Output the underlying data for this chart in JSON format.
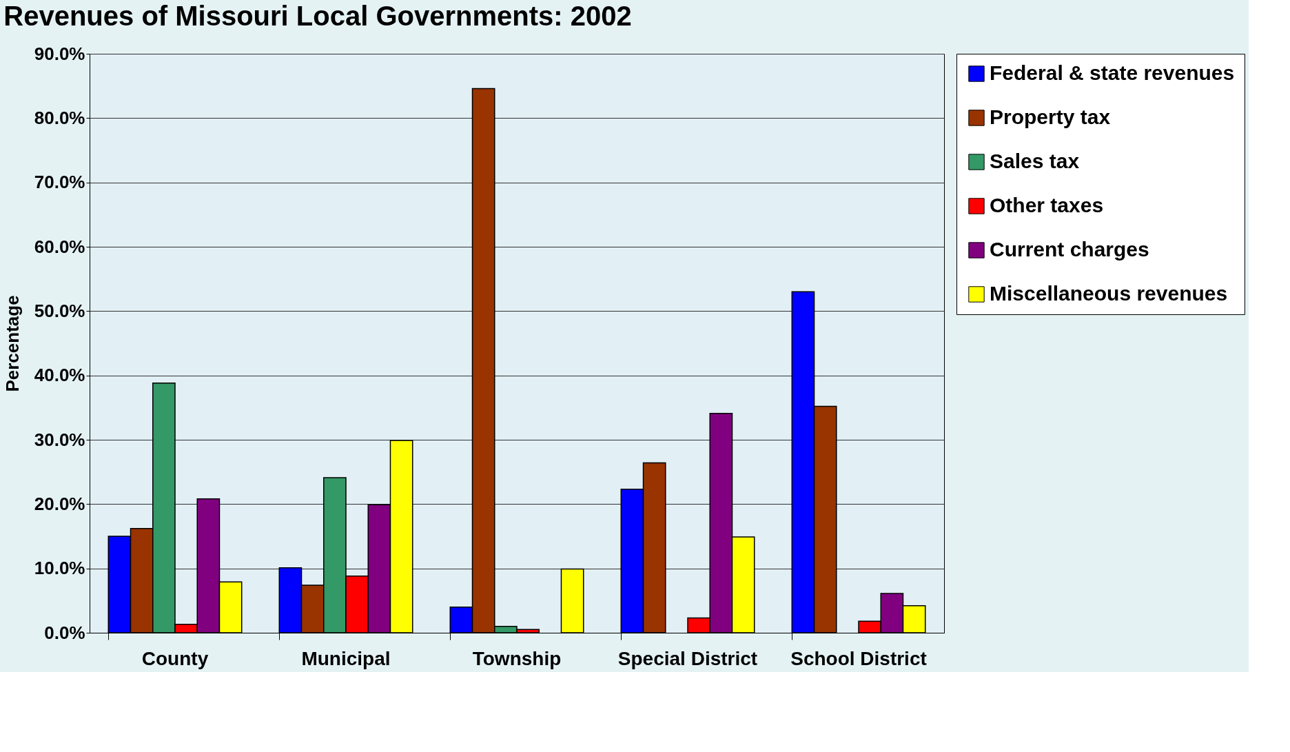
{
  "chart_data": {
    "type": "bar",
    "title": "Revenues of Missouri Local Governments: 2002",
    "ylabel": "Percentage",
    "categories": [
      "County",
      "Municipal",
      "Township",
      "Special District",
      "School District"
    ],
    "series": [
      {
        "name": "Federal & state revenues",
        "color": "#0000ff",
        "values": [
          15.0,
          10.1,
          4.0,
          22.3,
          53.0
        ]
      },
      {
        "name": "Property tax",
        "color": "#993300",
        "values": [
          16.2,
          7.4,
          84.6,
          26.4,
          35.2
        ]
      },
      {
        "name": "Sales tax",
        "color": "#339966",
        "values": [
          38.8,
          24.1,
          1.0,
          null,
          null
        ]
      },
      {
        "name": "Other taxes",
        "color": "#ff0000",
        "values": [
          1.3,
          8.8,
          0.5,
          2.3,
          1.8
        ]
      },
      {
        "name": "Current charges",
        "color": "#800080",
        "values": [
          20.8,
          19.9,
          null,
          34.1,
          6.1
        ]
      },
      {
        "name": "Miscellaneous revenues",
        "color": "#ffff00",
        "values": [
          7.9,
          29.9,
          9.9,
          14.9,
          4.2
        ]
      }
    ],
    "ylim": [
      0,
      90
    ],
    "yticks": [
      {
        "value": 0,
        "label": "0.0%"
      },
      {
        "value": 10,
        "label": "10.0%"
      },
      {
        "value": 20,
        "label": "20.0%"
      },
      {
        "value": 30,
        "label": "30.0%"
      },
      {
        "value": 40,
        "label": "40.0%"
      },
      {
        "value": 50,
        "label": "50.0%"
      },
      {
        "value": 60,
        "label": "60.0%"
      },
      {
        "value": 70,
        "label": "70.0%"
      },
      {
        "value": 80,
        "label": "80.0%"
      },
      {
        "value": 90,
        "label": "90.0%"
      }
    ],
    "grid": "y",
    "legend": "right"
  }
}
